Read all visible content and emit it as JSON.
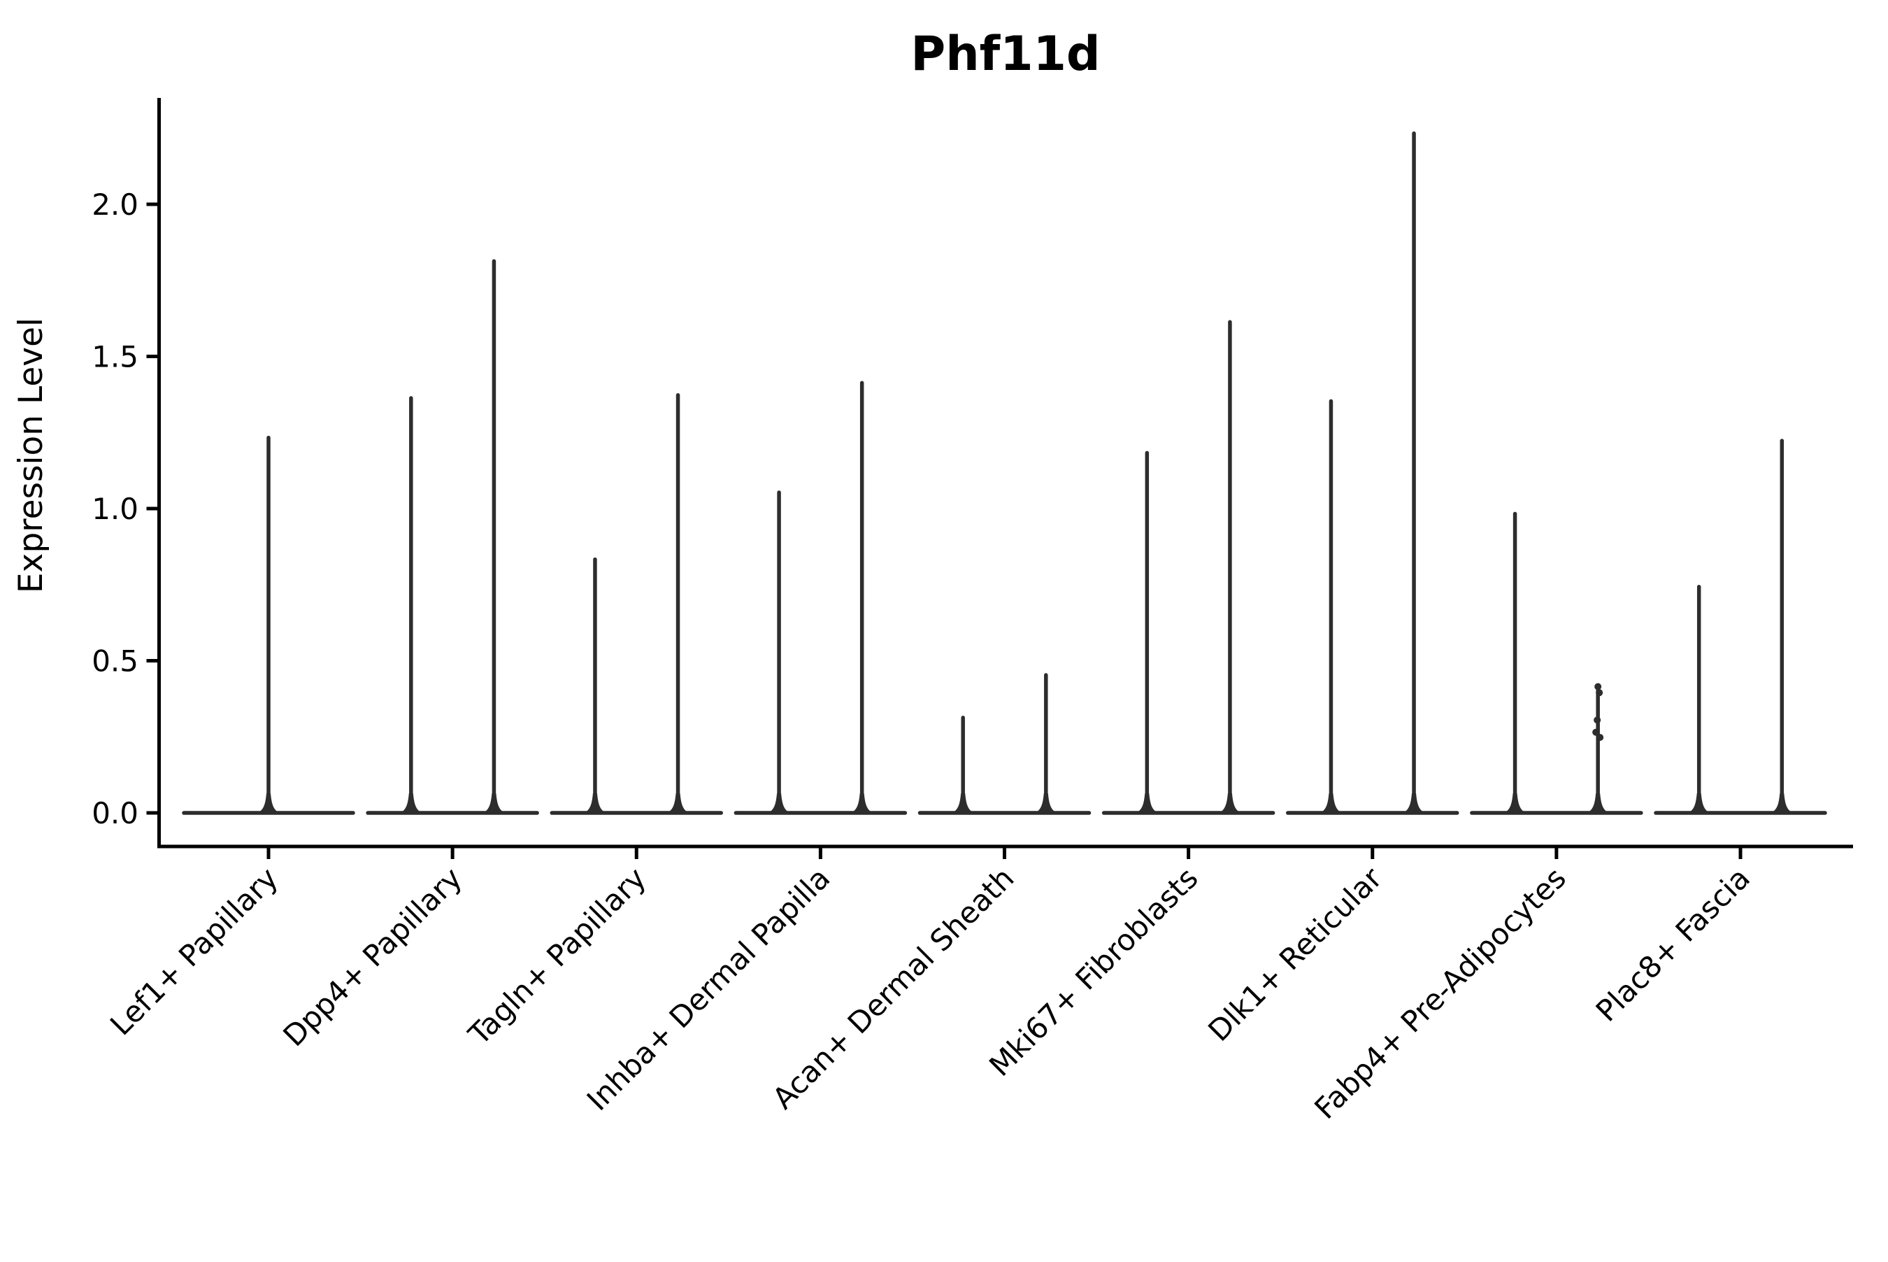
{
  "title": "Phf11d",
  "colors": {
    "violin": "#2d2d2d",
    "axis": "#000000",
    "background": "#ffffff",
    "text": "#000000"
  },
  "chart_data": {
    "type": "violin",
    "title": "Phf11d",
    "xlabel": "",
    "ylabel": "Expression Level",
    "ylim": [
      -0.11,
      2.35
    ],
    "y_ticks": [
      0.0,
      0.5,
      1.0,
      1.5,
      2.0
    ],
    "y_tick_labels": [
      "0.0",
      "0.5",
      "1.0",
      "1.5",
      "2.0"
    ],
    "x_tick_rotation": 45,
    "grid": false,
    "legend": "none",
    "categories": [
      "Lef1+ Papillary",
      "Dpp4+ Papillary",
      "Tagln+ Papillary",
      "Inhba+ Dermal Papilla",
      "Acan+ Dermal Sheath",
      "Mki67+ Fibroblasts",
      "Dlk1+ Reticular",
      "Fabp4+ Pre-Adipocytes",
      "Plac8+ Fascia"
    ],
    "violins": [
      {
        "category": "Lef1+ Papillary",
        "spikes": [
          {
            "pos": "center",
            "max": 1.24
          }
        ]
      },
      {
        "category": "Dpp4+ Papillary",
        "spikes": [
          {
            "pos": "left",
            "max": 1.37
          },
          {
            "pos": "right",
            "max": 1.82
          }
        ]
      },
      {
        "category": "Tagln+ Papillary",
        "spikes": [
          {
            "pos": "left",
            "max": 0.84
          },
          {
            "pos": "right",
            "max": 1.38
          }
        ]
      },
      {
        "category": "Inhba+ Dermal Papilla",
        "spikes": [
          {
            "pos": "left",
            "max": 1.06
          },
          {
            "pos": "right",
            "max": 1.42
          }
        ]
      },
      {
        "category": "Acan+ Dermal Sheath",
        "spikes": [
          {
            "pos": "left",
            "max": 0.32
          },
          {
            "pos": "right",
            "max": 0.46
          }
        ]
      },
      {
        "category": "Mki67+ Fibroblasts",
        "spikes": [
          {
            "pos": "left",
            "max": 1.19
          },
          {
            "pos": "right",
            "max": 1.62
          }
        ]
      },
      {
        "category": "Dlk1+ Reticular",
        "spikes": [
          {
            "pos": "left",
            "max": 1.36
          },
          {
            "pos": "right",
            "max": 2.24
          }
        ]
      },
      {
        "category": "Fabp4+ Pre-Adipocytes",
        "spikes": [
          {
            "pos": "left",
            "max": 0.99
          },
          {
            "pos": "right",
            "max": 0.41,
            "points": [
              0.415,
              0.395,
              0.305,
              0.265,
              0.248
            ]
          }
        ]
      },
      {
        "category": "Plac8+ Fascia",
        "spikes": [
          {
            "pos": "left",
            "max": 0.75
          },
          {
            "pos": "right",
            "max": 1.23
          }
        ]
      }
    ],
    "baseline_value": 0.0
  }
}
